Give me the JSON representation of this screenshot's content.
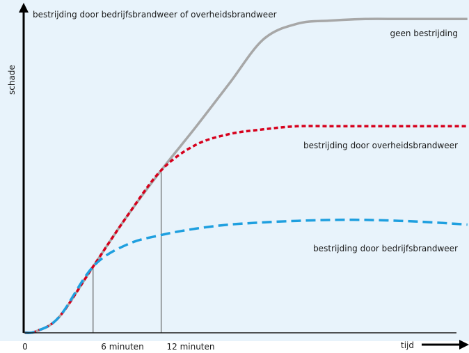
{
  "chart_data": {
    "type": "line",
    "title": "bestrijding door bedrijfsbrandweer of overheidsbrandweer",
    "xlabel": "tijd",
    "ylabel": "schade",
    "x_tick_labels": [
      "0",
      "6 minuten",
      "12 minuten"
    ],
    "x_ticks": [
      0,
      6,
      12
    ],
    "xlim": [
      0,
      39
    ],
    "ylim": [
      0,
      100
    ],
    "grid": false,
    "legend": "inline labels next to each curve",
    "colors": {
      "background": "#e8f3fb",
      "axis": "#000000",
      "geen": "#a7a7a7",
      "overheid": "#d6001c",
      "bedrijf": "#1e9fdf",
      "guide": "#444444"
    },
    "series": [
      {
        "name": "geen bestrijding",
        "x": [
          0,
          1,
          3,
          6,
          9,
          12,
          15,
          18,
          21,
          24,
          27,
          30,
          33,
          36,
          39
        ],
        "y": [
          0,
          0.5,
          5,
          21,
          37,
          51.5,
          65,
          79,
          93,
          98,
          99,
          99.5,
          99.5,
          99.5,
          99.5
        ]
      },
      {
        "name": "bestrijding door overheidsbrandweer",
        "x": [
          0,
          1,
          3,
          6,
          9,
          12,
          15,
          18,
          21,
          24,
          27,
          30,
          33,
          36,
          39
        ],
        "y": [
          0,
          0.5,
          5,
          21,
          37,
          51.5,
          59.5,
          63,
          64.5,
          65.5,
          65.5,
          65.5,
          65.5,
          65.5,
          65.5
        ]
      },
      {
        "name": "bestrijding door bedrijfsbrandweer",
        "x": [
          0,
          1,
          3,
          6,
          9,
          12,
          15,
          18,
          21,
          24,
          27,
          30,
          33,
          36,
          39
        ],
        "y": [
          0,
          0.5,
          5,
          21,
          28,
          31,
          33,
          34.3,
          35,
          35.5,
          35.8,
          35.8,
          35.5,
          35,
          34.3
        ]
      }
    ],
    "annotations": {
      "series_labels": [
        "geen bestrijding",
        "bestrijding door overheidsbrandweer",
        "bestrijding door bedrijfsbrandweer"
      ],
      "guide_lines_at_x": [
        6,
        12
      ]
    }
  }
}
